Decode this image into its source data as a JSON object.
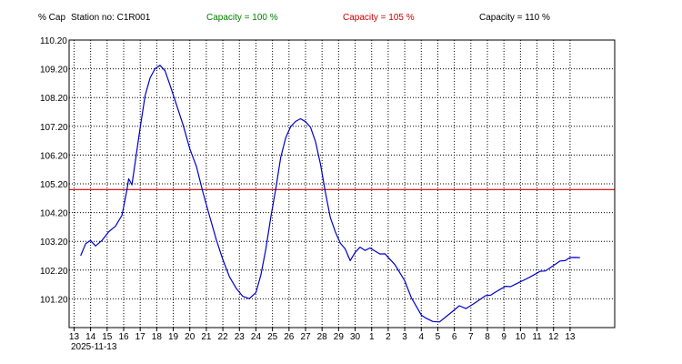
{
  "header": {
    "ylabel": "% Cap",
    "station": "Station no: C1R001",
    "cap100": "Capacity = 100 %",
    "cap105": "Capacity = 105 %",
    "cap110": "Capacity = 110 %",
    "colors": {
      "cap100": "#008000",
      "cap105": "#cc0000",
      "cap110": "#000000"
    }
  },
  "chart_data": {
    "type": "line",
    "ylabel": "% Cap",
    "ylim": [
      100.2,
      110.2
    ],
    "yticks": [
      "110.20",
      "109.20",
      "108.20",
      "107.20",
      "106.20",
      "105.20",
      "104.20",
      "103.20",
      "102.20",
      "101.20"
    ],
    "xlim": [
      0,
      33
    ],
    "xtick_labels": [
      "13",
      "14",
      "15",
      "16",
      "17",
      "18",
      "19",
      "20",
      "21",
      "22",
      "23",
      "24",
      "25",
      "26",
      "27",
      "28",
      "29",
      "30",
      "1",
      "2",
      "3",
      "4",
      "5",
      "6",
      "7",
      "8",
      "9",
      "10",
      "11",
      "12",
      "13"
    ],
    "xtick_positions": [
      0.3,
      1.3,
      2.3,
      3.3,
      4.3,
      5.3,
      6.3,
      7.3,
      8.3,
      9.3,
      10.3,
      11.3,
      12.3,
      13.3,
      14.3,
      15.3,
      16.3,
      17.3,
      18.3,
      19.3,
      20.3,
      21.3,
      22.3,
      23.3,
      24.3,
      25.3,
      26.3,
      27.3,
      28.3,
      29.3,
      30.3
    ],
    "xdate_label": "2025-11-13",
    "grid": true,
    "reference_lines": [
      {
        "y": 105.0,
        "color": "#cc0000"
      }
    ],
    "series": [
      {
        "color": "#0000cc",
        "x": [
          0.7,
          1.0,
          1.3,
          1.6,
          2.0,
          2.4,
          2.8,
          3.2,
          3.5,
          3.6,
          3.8,
          4.0,
          4.3,
          4.6,
          4.9,
          5.2,
          5.5,
          5.8,
          6.1,
          6.5,
          6.9,
          7.3,
          7.7,
          8.1,
          8.5,
          8.9,
          9.3,
          9.7,
          10.1,
          10.5,
          10.9,
          11.3,
          11.6,
          11.9,
          12.2,
          12.5,
          12.8,
          13.1,
          13.4,
          13.7,
          14.0,
          14.3,
          14.6,
          14.9,
          15.2,
          15.5,
          15.8,
          16.1,
          16.4,
          16.7,
          17.0,
          17.3,
          17.6,
          17.9,
          18.2,
          18.5,
          18.8,
          19.1,
          19.4,
          19.7,
          20.0,
          20.3,
          20.7,
          21.0,
          21.3,
          21.6,
          22.0,
          22.4,
          22.8,
          23.2,
          23.6,
          24.0,
          24.3,
          24.6,
          24.9,
          25.2,
          25.5,
          25.8,
          26.1,
          26.4,
          26.7,
          27.0,
          27.3,
          27.6,
          27.9,
          28.2,
          28.5,
          28.8,
          29.1,
          29.4,
          29.7,
          30.0,
          30.3,
          30.6,
          30.9
        ],
        "y": [
          102.7,
          103.1,
          103.2,
          103.0,
          103.2,
          103.5,
          103.7,
          104.1,
          105.0,
          105.4,
          105.2,
          106.0,
          107.2,
          108.3,
          108.9,
          109.2,
          109.3,
          109.1,
          108.6,
          107.9,
          107.2,
          106.4,
          105.8,
          104.9,
          104.1,
          103.3,
          102.6,
          102.0,
          101.6,
          101.3,
          101.2,
          101.4,
          102.0,
          102.9,
          104.0,
          105.0,
          106.1,
          106.8,
          107.2,
          107.4,
          107.5,
          107.4,
          107.2,
          106.7,
          105.9,
          104.9,
          104.0,
          103.5,
          103.1,
          102.9,
          102.5,
          102.8,
          103.0,
          102.9,
          103.0,
          102.9,
          102.8,
          102.8,
          102.6,
          102.4,
          102.1,
          101.8,
          101.2,
          100.9,
          100.6,
          100.5,
          100.4,
          100.4,
          100.6,
          100.8,
          101.0,
          100.9,
          101.0,
          101.1,
          101.2,
          101.3,
          101.3,
          101.4,
          101.5,
          101.6,
          101.6,
          101.7,
          101.8,
          101.9,
          102.0,
          102.1,
          102.2,
          102.2,
          102.3,
          102.4,
          102.5,
          102.5,
          102.6,
          102.6,
          102.6
        ]
      }
    ]
  }
}
